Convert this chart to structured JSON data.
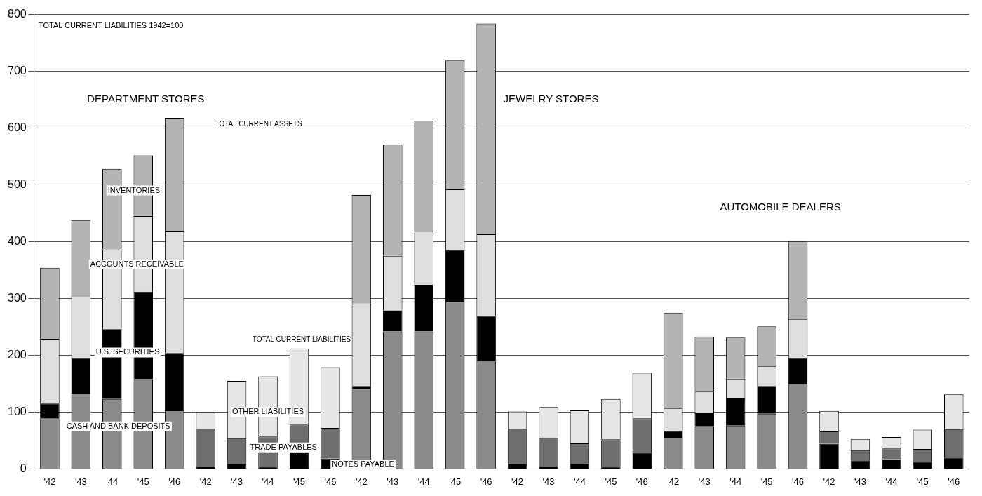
{
  "chart_data": {
    "type": "bar",
    "stacked": true,
    "categories": [
      "'42",
      "'43",
      "'44",
      "'45",
      "'46",
      "'42",
      "'43",
      "'44",
      "'45",
      "'46",
      "'42",
      "'43",
      "'44",
      "'45",
      "'46",
      "'42",
      "'43",
      "'44",
      "'45",
      "'46",
      "'42",
      "'43",
      "'44",
      "'45",
      "'46",
      "'42",
      "'43",
      "'44",
      "'45",
      "'46"
    ],
    "series": [
      {
        "name": "CASH AND BANK DEPOSITS",
        "color": "#8a8a8a",
        "values": [
          89,
          134,
          123,
          158,
          103,
          null,
          null,
          null,
          null,
          null,
          141,
          242,
          242,
          294,
          190,
          null,
          null,
          null,
          null,
          null,
          56,
          75,
          76,
          97,
          150,
          null,
          null,
          null,
          null,
          null
        ]
      },
      {
        "name": "U.S. SECURITIES",
        "color": "#000000",
        "values": [
          26,
          61,
          123,
          154,
          101,
          null,
          null,
          null,
          null,
          null,
          5,
          37,
          82,
          91,
          79,
          null,
          null,
          null,
          null,
          null,
          11,
          23,
          48,
          49,
          45,
          null,
          null,
          null,
          null,
          null
        ]
      },
      {
        "name": "ACCOUNTS RECEIVABLE",
        "color": "#dedede",
        "values": [
          114,
          110,
          140,
          133,
          215,
          null,
          null,
          null,
          null,
          null,
          145,
          96,
          94,
          107,
          144,
          null,
          null,
          null,
          null,
          null,
          40,
          38,
          35,
          35,
          69,
          null,
          null,
          null,
          null,
          null
        ]
      },
      {
        "name": "INVENTORIES",
        "color": "#b4b4b4",
        "values": [
          125,
          133,
          142,
          107,
          199,
          null,
          null,
          null,
          null,
          null,
          191,
          196,
          195,
          227,
          371,
          null,
          null,
          null,
          null,
          null,
          168,
          97,
          72,
          70,
          137,
          null,
          null,
          null,
          null,
          null
        ]
      },
      {
        "name": "NOTES PAYABLE",
        "color": "#000000",
        "values": [
          null,
          null,
          null,
          null,
          null,
          5,
          10,
          4,
          29,
          18,
          null,
          null,
          null,
          null,
          null,
          9,
          5,
          10,
          4,
          28,
          null,
          null,
          null,
          null,
          null,
          44,
          15,
          17,
          12,
          20
        ]
      },
      {
        "name": "TRADE PAYABLES",
        "color": "#6e6e6e",
        "values": [
          null,
          null,
          null,
          null,
          null,
          66,
          44,
          53,
          49,
          54,
          null,
          null,
          null,
          null,
          null,
          62,
          50,
          35,
          48,
          61,
          null,
          null,
          null,
          null,
          null,
          22,
          18,
          19,
          23,
          50
        ]
      },
      {
        "name": "OTHER LIABILITIES",
        "color": "#e6e6e6",
        "values": [
          null,
          null,
          null,
          null,
          null,
          29,
          101,
          106,
          134,
          107,
          null,
          null,
          null,
          null,
          null,
          30,
          54,
          58,
          71,
          80,
          null,
          null,
          null,
          null,
          null,
          36,
          19,
          20,
          34,
          61
        ]
      }
    ],
    "ylim": [
      0,
      800
    ],
    "yticks": [
      0,
      100,
      200,
      300,
      400,
      500,
      600,
      700,
      800
    ],
    "grid": "y",
    "legend": false,
    "annotations": [
      "TOTAL CURRENT LIABILITIES 1942=100",
      "DEPARTMENT STORES",
      "TOTAL CURRENT ASSETS",
      "TOTAL CURRENT LIABILITIES",
      "JEWELRY STORES",
      "AUTOMOBILE DEALERS"
    ]
  }
}
